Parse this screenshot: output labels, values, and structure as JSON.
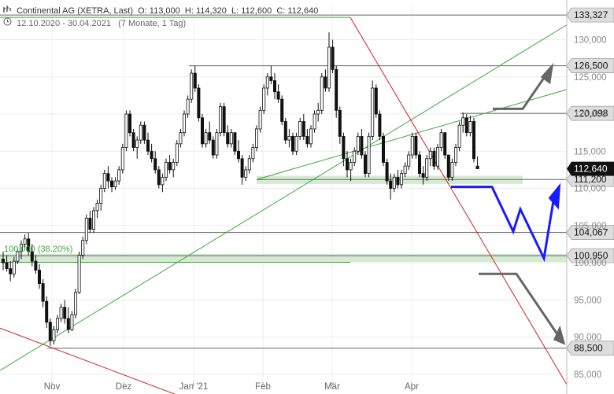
{
  "header": {
    "title": "Continental AG (XETRA, Last)",
    "open": "O: 113,000",
    "high": "H: 114,320",
    "low": "L: 112,600",
    "close": "C: 112,640",
    "period": "12.10.2020 - 30.04.2021",
    "period_detail": "(7 Monate, 1 Tag)"
  },
  "colors": {
    "up": "#ffffff",
    "down": "#111111",
    "trend_green": "#3aa83a",
    "trend_red": "#d21f1f",
    "forecast_blue": "#1a1aff",
    "forecast_gray": "#666666",
    "zone_fill": "#d4ead1",
    "last_price_tag": "#111111",
    "level_tag": "#dddddd"
  },
  "chart_data": {
    "type": "candlestick",
    "ylim": [
      83.5,
      134.5
    ],
    "y_ticks": [
      "85,000",
      "90,000",
      "95,000",
      "100,000",
      "105,000",
      "110,000",
      "115,000",
      "120,000",
      "125,000",
      "130,000"
    ],
    "x_labels": [
      "Nov",
      "Dez",
      "Jan '21",
      "Feb",
      "Mär",
      "Apr"
    ],
    "fib_label": "100,000 (38.20%)",
    "last_price": "112,640",
    "levels": [
      {
        "label": "133,327",
        "value": 133.327
      },
      {
        "label": "126,500",
        "value": 126.5
      },
      {
        "label": "120,098",
        "value": 120.098
      },
      {
        "label": "111,200",
        "value": 111.2
      },
      {
        "label": "104,067",
        "value": 104.067
      },
      {
        "label": "100,950",
        "value": 100.95
      },
      {
        "label": "88,500",
        "value": 88.5
      }
    ],
    "candles": [
      [
        100.5,
        101.5,
        99.0,
        100.0
      ],
      [
        100.0,
        101.0,
        98.8,
        99.2
      ],
      [
        99.2,
        100.2,
        97.5,
        98.5
      ],
      [
        98.5,
        100.8,
        98.0,
        100.2
      ],
      [
        100.2,
        102.0,
        99.8,
        101.5
      ],
      [
        101.5,
        103.0,
        100.5,
        102.5
      ],
      [
        102.5,
        103.8,
        101.8,
        103.2
      ],
      [
        103.2,
        104.0,
        101.0,
        101.5
      ],
      [
        101.5,
        102.5,
        99.5,
        100.2
      ],
      [
        100.2,
        101.0,
        98.5,
        99.0
      ],
      [
        99.0,
        99.8,
        96.5,
        97.2
      ],
      [
        97.2,
        97.8,
        94.0,
        94.8
      ],
      [
        94.8,
        95.5,
        91.2,
        92.0
      ],
      [
        92.0,
        92.5,
        88.8,
        89.5
      ],
      [
        89.5,
        91.5,
        89.0,
        91.0
      ],
      [
        91.0,
        93.0,
        90.5,
        92.5
      ],
      [
        92.5,
        94.5,
        92.0,
        94.0
      ],
      [
        94.0,
        95.0,
        91.8,
        92.5
      ],
      [
        92.5,
        94.0,
        90.5,
        91.0
      ],
      [
        91.0,
        93.5,
        90.8,
        93.0
      ],
      [
        93.0,
        96.5,
        92.5,
        96.0
      ],
      [
        96.0,
        101.5,
        95.8,
        101.0
      ],
      [
        101.0,
        103.5,
        100.5,
        103.0
      ],
      [
        103.0,
        106.5,
        102.5,
        106.0
      ],
      [
        106.0,
        107.0,
        104.0,
        104.5
      ],
      [
        104.5,
        107.5,
        104.0,
        107.0
      ],
      [
        107.0,
        108.5,
        106.0,
        108.0
      ],
      [
        108.0,
        110.5,
        107.0,
        110.0
      ],
      [
        110.0,
        112.5,
        109.5,
        112.0
      ],
      [
        112.0,
        113.0,
        110.0,
        111.0
      ],
      [
        111.0,
        111.5,
        109.5,
        110.2
      ],
      [
        110.2,
        111.5,
        109.8,
        111.0
      ],
      [
        111.0,
        113.0,
        110.5,
        112.5
      ],
      [
        112.5,
        116.0,
        112.0,
        115.5
      ],
      [
        115.5,
        120.5,
        115.0,
        120.0
      ],
      [
        120.0,
        120.5,
        117.0,
        117.5
      ],
      [
        117.5,
        118.0,
        115.0,
        115.5
      ],
      [
        115.5,
        117.0,
        114.0,
        116.5
      ],
      [
        116.5,
        119.0,
        116.0,
        118.5
      ],
      [
        118.5,
        119.0,
        116.0,
        116.5
      ],
      [
        116.5,
        117.5,
        114.5,
        115.0
      ],
      [
        115.0,
        116.0,
        113.5,
        114.0
      ],
      [
        114.0,
        115.0,
        112.0,
        112.5
      ],
      [
        112.5,
        113.0,
        110.0,
        110.5
      ],
      [
        110.5,
        112.0,
        109.5,
        111.5
      ],
      [
        111.5,
        114.0,
        111.0,
        113.5
      ],
      [
        113.5,
        114.5,
        112.0,
        112.5
      ],
      [
        112.5,
        114.0,
        111.5,
        113.5
      ],
      [
        113.5,
        116.5,
        113.0,
        116.0
      ],
      [
        116.0,
        118.0,
        115.5,
        117.5
      ],
      [
        117.5,
        120.5,
        117.0,
        120.0
      ],
      [
        120.0,
        122.5,
        119.5,
        122.0
      ],
      [
        122.0,
        126.0,
        121.5,
        125.5
      ],
      [
        125.5,
        126.5,
        123.0,
        123.5
      ],
      [
        123.5,
        124.0,
        119.0,
        119.5
      ],
      [
        119.5,
        120.0,
        115.5,
        116.0
      ],
      [
        116.0,
        118.0,
        115.5,
        117.5
      ],
      [
        117.5,
        119.0,
        116.0,
        116.5
      ],
      [
        116.5,
        117.0,
        114.0,
        114.5
      ],
      [
        114.5,
        118.0,
        114.0,
        117.5
      ],
      [
        117.5,
        121.5,
        117.0,
        121.0
      ],
      [
        121.0,
        121.5,
        117.0,
        117.5
      ],
      [
        117.5,
        118.5,
        115.5,
        116.0
      ],
      [
        116.0,
        118.0,
        115.5,
        117.5
      ],
      [
        117.5,
        117.5,
        114.5,
        115.0
      ],
      [
        115.0,
        116.5,
        113.5,
        114.0
      ],
      [
        114.0,
        114.5,
        110.5,
        111.5
      ],
      [
        111.5,
        113.0,
        111.0,
        112.5
      ],
      [
        112.5,
        114.5,
        112.0,
        114.0
      ],
      [
        114.0,
        116.0,
        113.5,
        115.5
      ],
      [
        115.5,
        118.5,
        115.0,
        118.0
      ],
      [
        118.0,
        121.0,
        117.5,
        120.5
      ],
      [
        120.5,
        124.0,
        120.0,
        123.5
      ],
      [
        123.5,
        125.5,
        122.5,
        125.0
      ],
      [
        125.0,
        126.5,
        124.0,
        124.5
      ],
      [
        124.5,
        125.5,
        122.0,
        123.0
      ],
      [
        123.0,
        124.0,
        121.5,
        122.0
      ],
      [
        122.0,
        122.5,
        118.5,
        119.0
      ],
      [
        119.0,
        119.5,
        116.0,
        116.5
      ],
      [
        116.5,
        118.0,
        115.5,
        117.0
      ],
      [
        117.0,
        117.5,
        114.5,
        115.0
      ],
      [
        115.0,
        117.5,
        114.5,
        117.0
      ],
      [
        117.0,
        119.5,
        116.5,
        119.0
      ],
      [
        119.0,
        120.0,
        116.5,
        117.0
      ],
      [
        117.0,
        118.0,
        115.5,
        116.0
      ],
      [
        116.0,
        118.5,
        115.5,
        118.0
      ],
      [
        118.0,
        120.5,
        117.5,
        120.0
      ],
      [
        120.0,
        121.5,
        119.0,
        120.5
      ],
      [
        120.5,
        125.5,
        120.0,
        125.0
      ],
      [
        125.0,
        126.0,
        123.0,
        123.5
      ],
      [
        123.5,
        131.0,
        123.0,
        129.0
      ],
      [
        129.0,
        130.0,
        125.5,
        126.0
      ],
      [
        126.0,
        126.5,
        119.5,
        120.5
      ],
      [
        120.5,
        121.0,
        116.0,
        117.0
      ],
      [
        117.0,
        117.5,
        113.0,
        114.0
      ],
      [
        114.0,
        115.0,
        111.5,
        112.5
      ],
      [
        112.5,
        114.0,
        111.0,
        113.5
      ],
      [
        113.5,
        115.5,
        113.0,
        115.0
      ],
      [
        115.0,
        117.5,
        114.5,
        117.0
      ],
      [
        117.0,
        118.0,
        114.0,
        114.5
      ],
      [
        114.5,
        115.0,
        111.5,
        112.0
      ],
      [
        112.0,
        117.5,
        111.5,
        117.0
      ],
      [
        117.0,
        124.5,
        116.5,
        123.5
      ],
      [
        123.5,
        124.0,
        119.5,
        120.0
      ],
      [
        120.0,
        120.5,
        116.5,
        117.0
      ],
      [
        117.0,
        117.5,
        113.0,
        113.5
      ],
      [
        113.5,
        114.0,
        110.5,
        111.0
      ],
      [
        111.0,
        112.0,
        108.5,
        110.0
      ],
      [
        110.0,
        112.0,
        109.5,
        111.5
      ],
      [
        111.5,
        112.5,
        110.0,
        110.5
      ],
      [
        110.5,
        112.5,
        110.0,
        112.0
      ],
      [
        112.0,
        113.5,
        111.5,
        113.0
      ],
      [
        113.0,
        115.0,
        112.5,
        114.5
      ],
      [
        114.5,
        117.5,
        114.0,
        117.0
      ],
      [
        117.0,
        117.5,
        114.0,
        114.5
      ],
      [
        114.5,
        115.0,
        111.5,
        112.0
      ],
      [
        112.0,
        113.0,
        110.5,
        111.5
      ],
      [
        111.5,
        114.5,
        111.0,
        114.0
      ],
      [
        114.0,
        115.5,
        113.0,
        115.0
      ],
      [
        115.0,
        115.5,
        112.5,
        113.0
      ],
      [
        113.0,
        116.0,
        112.5,
        115.5
      ],
      [
        115.5,
        118.0,
        115.0,
        117.5
      ],
      [
        117.5,
        117.5,
        114.0,
        114.5
      ],
      [
        114.5,
        114.5,
        111.0,
        111.5
      ],
      [
        111.5,
        114.0,
        111.0,
        113.5
      ],
      [
        113.5,
        116.0,
        113.0,
        115.5
      ],
      [
        115.5,
        119.0,
        115.0,
        118.5
      ],
      [
        118.5,
        120.2,
        117.5,
        119.5
      ],
      [
        119.5,
        120.0,
        117.0,
        117.5
      ],
      [
        117.5,
        119.8,
        117.0,
        119.0
      ],
      [
        119.0,
        119.5,
        113.5,
        114.0
      ],
      [
        113.0,
        114.3,
        112.6,
        112.64
      ]
    ]
  }
}
